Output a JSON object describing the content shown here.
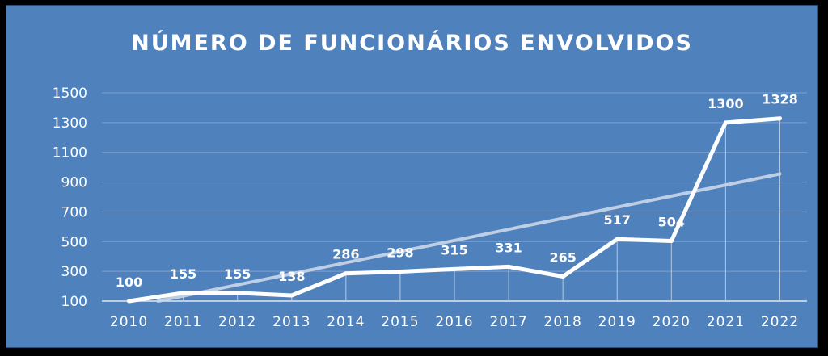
{
  "colors": {
    "background": "#4f81bd",
    "line": "#ffffff",
    "trend": "#c9d7ea",
    "grid": "#7fa1cf",
    "frame": "#000000"
  },
  "chart_data": {
    "type": "line",
    "title": "NÚMERO DE FUNCIONÁRIOS ENVOLVIDOS",
    "xlabel": "",
    "ylabel": "",
    "categories": [
      "2010",
      "2011",
      "2012",
      "2013",
      "2014",
      "2015",
      "2016",
      "2017",
      "2018",
      "2019",
      "2020",
      "2021",
      "2022"
    ],
    "series": [
      {
        "values": [
          100,
          155,
          155,
          138,
          286,
          298,
          315,
          331,
          265,
          517,
          504,
          1300,
          1328
        ]
      }
    ],
    "data_labels": [
      "100",
      "155",
      "155",
      "138",
      "286",
      "298",
      "315",
      "331",
      "265",
      "517",
      "504",
      "1300",
      "1328"
    ],
    "yticks": [
      100,
      300,
      500,
      700,
      900,
      1100,
      1300,
      1500
    ],
    "ylim": [
      100,
      1500
    ],
    "trendline": {
      "type": "linear",
      "from": 60,
      "to": 955
    },
    "grid": true,
    "legend": "none"
  }
}
